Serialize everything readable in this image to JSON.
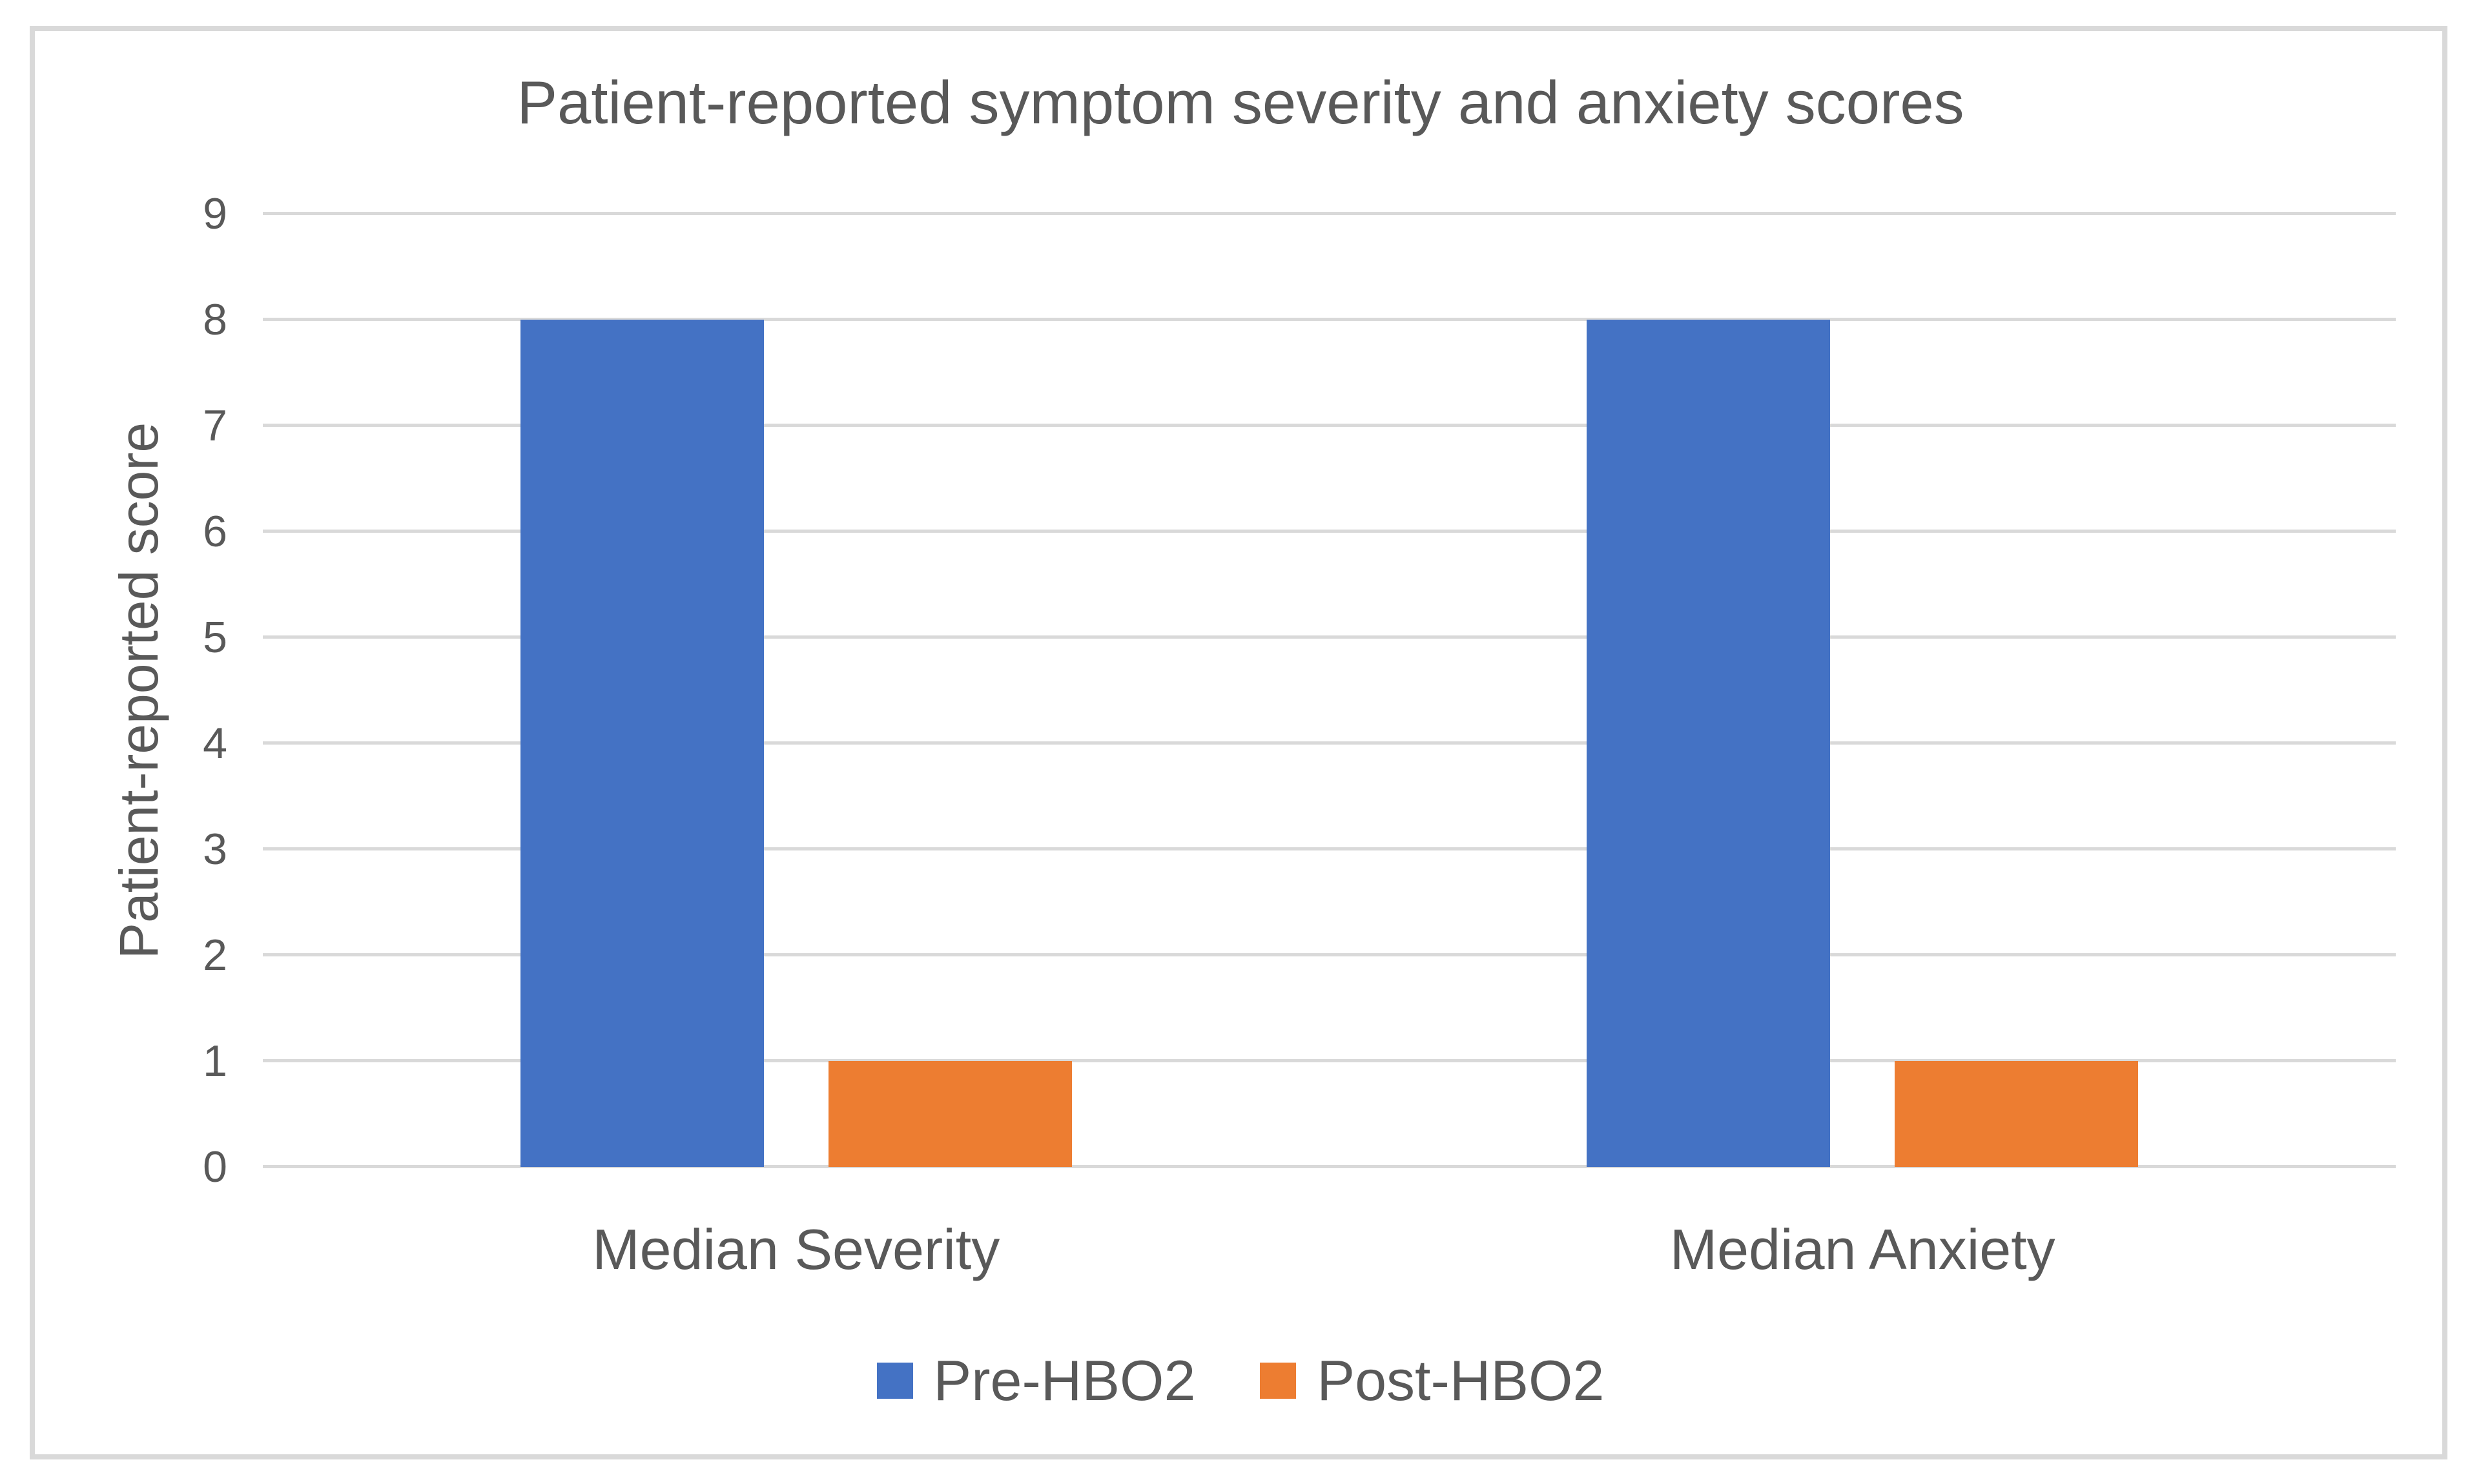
{
  "chart_data": {
    "type": "bar",
    "title": "Patient-reported symptom severity and anxiety scores",
    "ylabel": "Patient-reported score",
    "xlabel": "",
    "categories": [
      "Median Severity",
      "Median Anxiety"
    ],
    "series": [
      {
        "name": "Pre-HBO2",
        "color": "#4472C4",
        "values": [
          8,
          8
        ]
      },
      {
        "name": "Post-HBO2",
        "color": "#ED7D31",
        "values": [
          1,
          1
        ]
      }
    ],
    "ylim": [
      0,
      9
    ],
    "yticks": [
      0,
      1,
      2,
      3,
      4,
      5,
      6,
      7,
      8,
      9
    ],
    "grid": true,
    "legend_position": "bottom"
  },
  "colors": {
    "gridline": "#D9D9D9",
    "frame_border": "#D9D9D9",
    "text": "#595959",
    "background": "#FFFFFF"
  }
}
